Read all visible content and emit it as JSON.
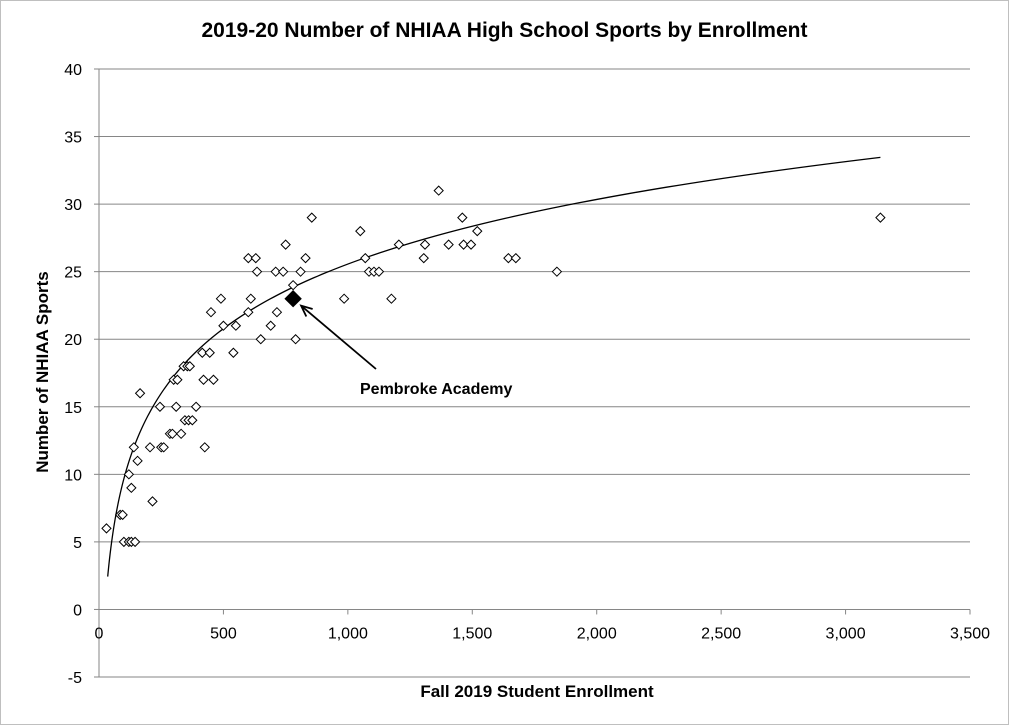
{
  "chart_data": {
    "type": "scatter",
    "title": "2019-20 Number of NHIAA High School Sports by Enrollment",
    "xlabel": "Fall 2019 Student Enrollment",
    "ylabel": "Number of NHIAA Sports",
    "xlim": [
      0,
      3500
    ],
    "ylim": [
      -5,
      40
    ],
    "xticks": [
      0,
      500,
      1000,
      1500,
      2000,
      2500,
      3000,
      3500
    ],
    "xtick_labels": [
      "0",
      "500",
      "1,000",
      "1,500",
      "2,000",
      "2,500",
      "3,000",
      "3,500"
    ],
    "yticks": [
      -5,
      0,
      5,
      10,
      15,
      20,
      25,
      30,
      35,
      40
    ],
    "ytick_labels": [
      "-5",
      "0",
      "5",
      "10",
      "15",
      "20",
      "25",
      "30",
      "35",
      "40"
    ],
    "grid": "horizontal",
    "points": [
      {
        "x": 30,
        "y": 6
      },
      {
        "x": 85,
        "y": 7
      },
      {
        "x": 95,
        "y": 7
      },
      {
        "x": 100,
        "y": 5
      },
      {
        "x": 120,
        "y": 5
      },
      {
        "x": 130,
        "y": 5
      },
      {
        "x": 145,
        "y": 5
      },
      {
        "x": 120,
        "y": 10
      },
      {
        "x": 130,
        "y": 9
      },
      {
        "x": 140,
        "y": 12
      },
      {
        "x": 155,
        "y": 11
      },
      {
        "x": 165,
        "y": 16
      },
      {
        "x": 205,
        "y": 12
      },
      {
        "x": 215,
        "y": 8
      },
      {
        "x": 245,
        "y": 15
      },
      {
        "x": 250,
        "y": 12
      },
      {
        "x": 260,
        "y": 12
      },
      {
        "x": 285,
        "y": 13
      },
      {
        "x": 295,
        "y": 13
      },
      {
        "x": 300,
        "y": 17
      },
      {
        "x": 310,
        "y": 15
      },
      {
        "x": 315,
        "y": 17
      },
      {
        "x": 330,
        "y": 13
      },
      {
        "x": 340,
        "y": 18
      },
      {
        "x": 345,
        "y": 14
      },
      {
        "x": 355,
        "y": 18
      },
      {
        "x": 360,
        "y": 14
      },
      {
        "x": 365,
        "y": 18
      },
      {
        "x": 375,
        "y": 14
      },
      {
        "x": 390,
        "y": 15
      },
      {
        "x": 415,
        "y": 19
      },
      {
        "x": 420,
        "y": 17
      },
      {
        "x": 425,
        "y": 12
      },
      {
        "x": 445,
        "y": 19
      },
      {
        "x": 450,
        "y": 22
      },
      {
        "x": 460,
        "y": 17
      },
      {
        "x": 490,
        "y": 23
      },
      {
        "x": 500,
        "y": 21
      },
      {
        "x": 540,
        "y": 19
      },
      {
        "x": 550,
        "y": 21
      },
      {
        "x": 600,
        "y": 22
      },
      {
        "x": 600,
        "y": 26
      },
      {
        "x": 610,
        "y": 23
      },
      {
        "x": 630,
        "y": 26
      },
      {
        "x": 635,
        "y": 25
      },
      {
        "x": 650,
        "y": 20
      },
      {
        "x": 690,
        "y": 21
      },
      {
        "x": 710,
        "y": 25
      },
      {
        "x": 715,
        "y": 22
      },
      {
        "x": 740,
        "y": 25
      },
      {
        "x": 750,
        "y": 27
      },
      {
        "x": 780,
        "y": 24
      },
      {
        "x": 790,
        "y": 20
      },
      {
        "x": 810,
        "y": 25
      },
      {
        "x": 830,
        "y": 26
      },
      {
        "x": 855,
        "y": 29
      },
      {
        "x": 985,
        "y": 23
      },
      {
        "x": 1050,
        "y": 28
      },
      {
        "x": 1070,
        "y": 26
      },
      {
        "x": 1085,
        "y": 25
      },
      {
        "x": 1105,
        "y": 25
      },
      {
        "x": 1125,
        "y": 25
      },
      {
        "x": 1175,
        "y": 23
      },
      {
        "x": 1205,
        "y": 27
      },
      {
        "x": 1305,
        "y": 26
      },
      {
        "x": 1310,
        "y": 27
      },
      {
        "x": 1365,
        "y": 31
      },
      {
        "x": 1405,
        "y": 27
      },
      {
        "x": 1460,
        "y": 29
      },
      {
        "x": 1465,
        "y": 27
      },
      {
        "x": 1495,
        "y": 27
      },
      {
        "x": 1520,
        "y": 28
      },
      {
        "x": 1645,
        "y": 26
      },
      {
        "x": 1675,
        "y": 26
      },
      {
        "x": 1840,
        "y": 25
      },
      {
        "x": 3140,
        "y": 29
      }
    ],
    "highlight": {
      "x": 780,
      "y": 23,
      "label": "Pembroke Academy"
    },
    "trendline": {
      "type": "logarithmic",
      "a": 6.9,
      "b": -22.1,
      "x_start": 35,
      "x_end": 3140
    },
    "colors": {
      "marker_stroke": "#000000",
      "grid": "#868686",
      "trendline": "#000000",
      "highlight": "#000000"
    }
  }
}
